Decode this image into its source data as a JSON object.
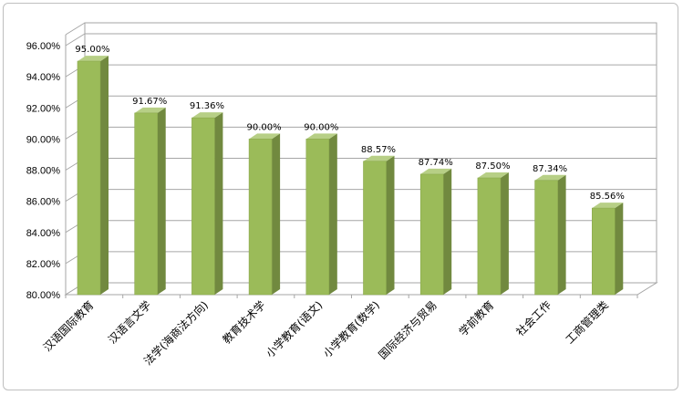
{
  "chart_data": {
    "type": "bar",
    "categories": [
      "汉语国际教育",
      "汉语言文学",
      "法学(海商法方向)",
      "教育技术学",
      "小学教育(语文)",
      "小学教育(数学)",
      "国际经济与贸易",
      "学前教育",
      "社会工作",
      "工商管理类"
    ],
    "values": [
      95.0,
      91.67,
      91.36,
      90.0,
      90.0,
      88.57,
      87.74,
      87.5,
      87.34,
      85.56
    ],
    "data_labels": [
      "95.00%",
      "91.67%",
      "91.36%",
      "90.00%",
      "90.00%",
      "88.57%",
      "87.74%",
      "87.50%",
      "87.34%",
      "85.56%"
    ],
    "y_ticks": [
      "80.00%",
      "82.00%",
      "84.00%",
      "86.00%",
      "88.00%",
      "90.00%",
      "92.00%",
      "94.00%",
      "96.00%"
    ],
    "ylim": [
      80,
      96
    ],
    "title": "",
    "xlabel": "",
    "ylabel": "",
    "grid": true,
    "style": "3d-column",
    "colors": {
      "bar_front": "#9bbb59",
      "bar_side": "#71893f",
      "bar_top": "#b7cf86",
      "grid": "#a6a6a6",
      "wall": "#ffffff"
    }
  }
}
